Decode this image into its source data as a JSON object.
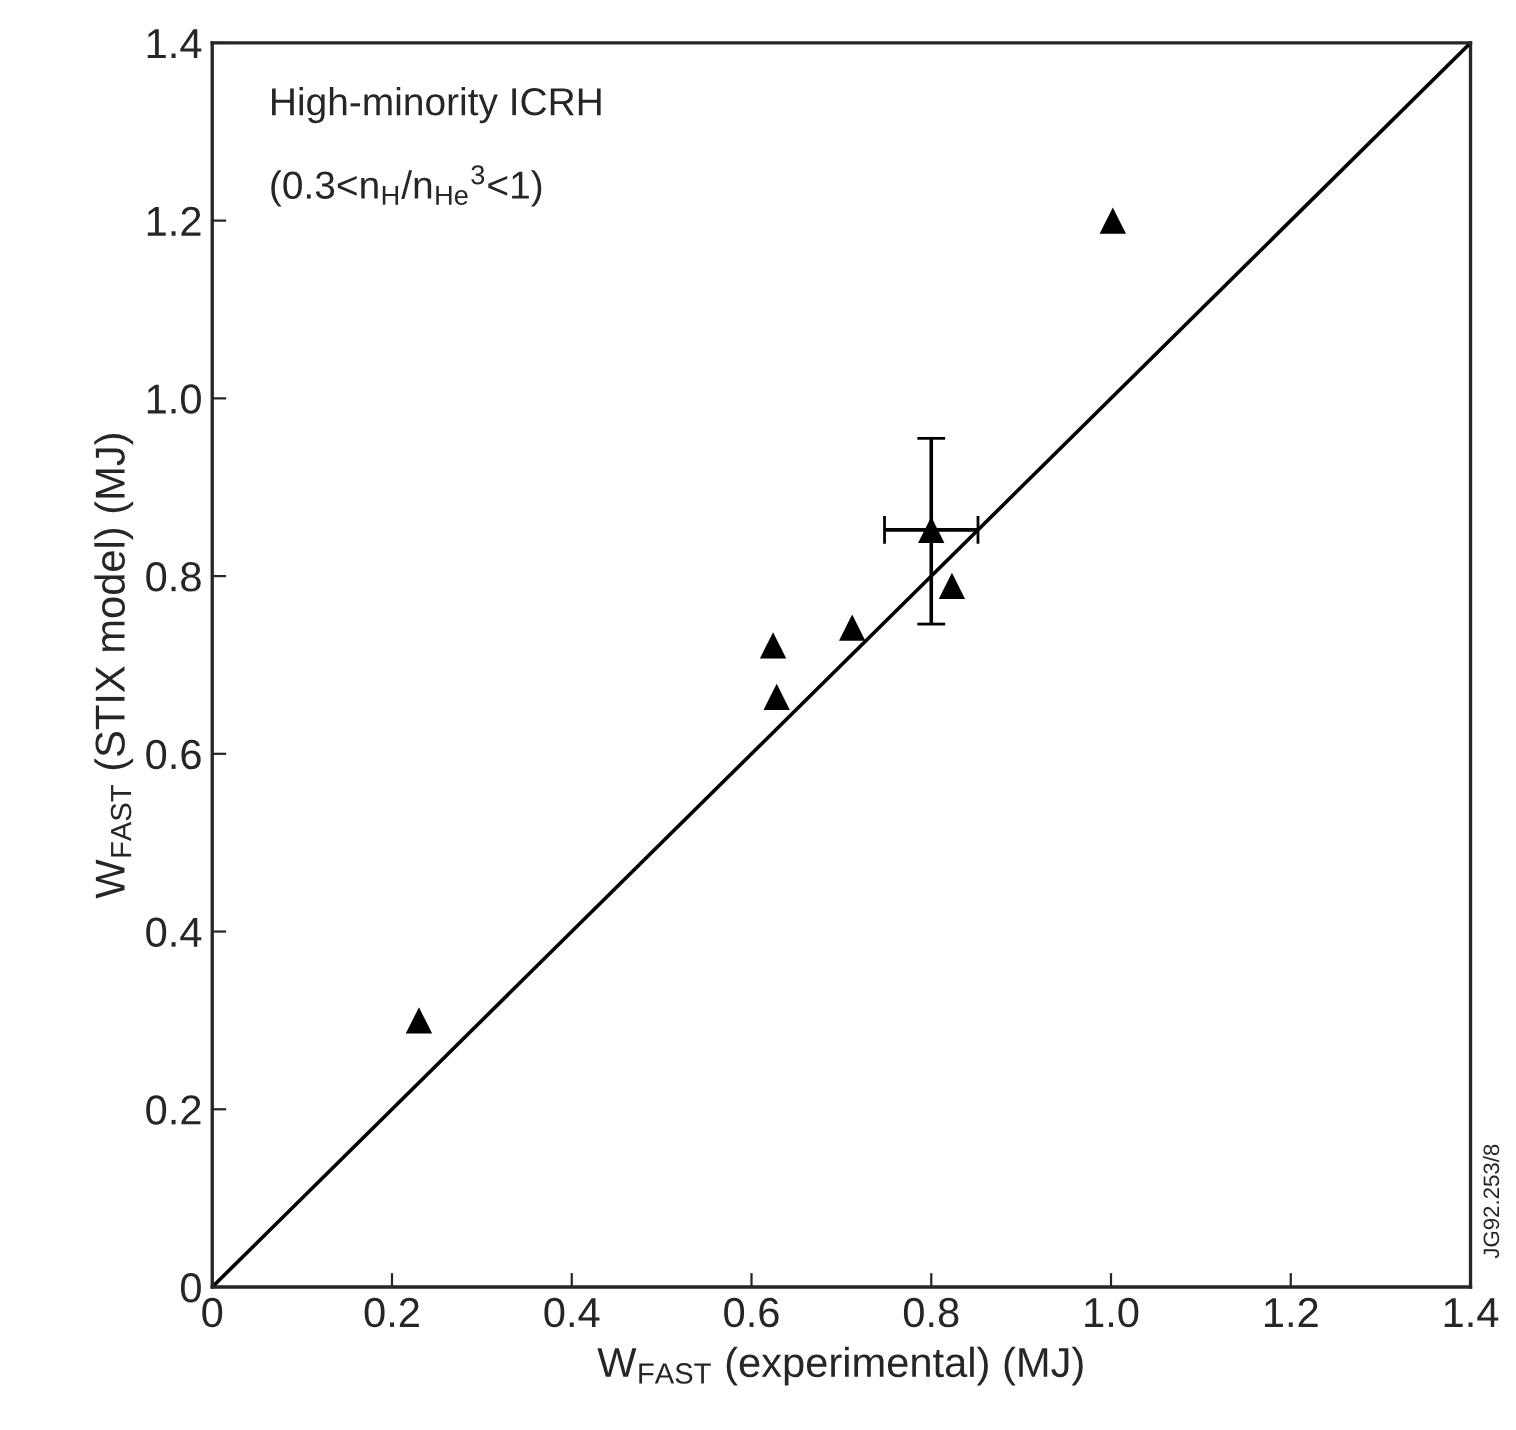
{
  "chart_data": {
    "type": "scatter",
    "xlabel": "W$_{FAST}$ (experimental) (MJ)",
    "ylabel": "W$_{FAST}$ (STIX model) (MJ)",
    "annotations": [
      "High-minority ICRH",
      "(0.3<n$_{H}$/n$_{He}$$^{3}$<1)",
      "JG92.253/8"
    ],
    "xlim": [
      0,
      1.4
    ],
    "ylim": [
      0,
      1.4
    ],
    "xticks": [
      0,
      0.2,
      0.4,
      0.6,
      0.8,
      {
        "value": 1.0,
        "label": "1.0"
      },
      1.2,
      1.4
    ],
    "yticks": [
      0,
      0.2,
      0.4,
      0.6,
      0.8,
      {
        "value": 1.0,
        "label": "1.0"
      },
      1.2,
      1.4
    ],
    "grid": false,
    "legend": false,
    "series": [
      {
        "color": "#000000",
        "marker": "triangle",
        "x": [
          0.23,
          0.624,
          0.628,
          0.712,
          0.8,
          0.823,
          1.002
        ],
        "values": [
          0.3,
          0.722,
          0.664,
          0.742,
          0.852,
          0.789,
          1.2
        ],
        "errors": [
          null,
          null,
          null,
          null,
          [
            0.746,
            0.955
          ],
          null,
          null
        ],
        "xerrors": [
          null,
          null,
          null,
          null,
          [
            0.748,
            0.852
          ],
          null,
          null
        ]
      },
      {
        "type": "line",
        "color": "#000000",
        "marker": "none",
        "line_style": "solid",
        "x": [
          0,
          1.4
        ],
        "values": [
          0,
          1.4
        ]
      }
    ]
  }
}
